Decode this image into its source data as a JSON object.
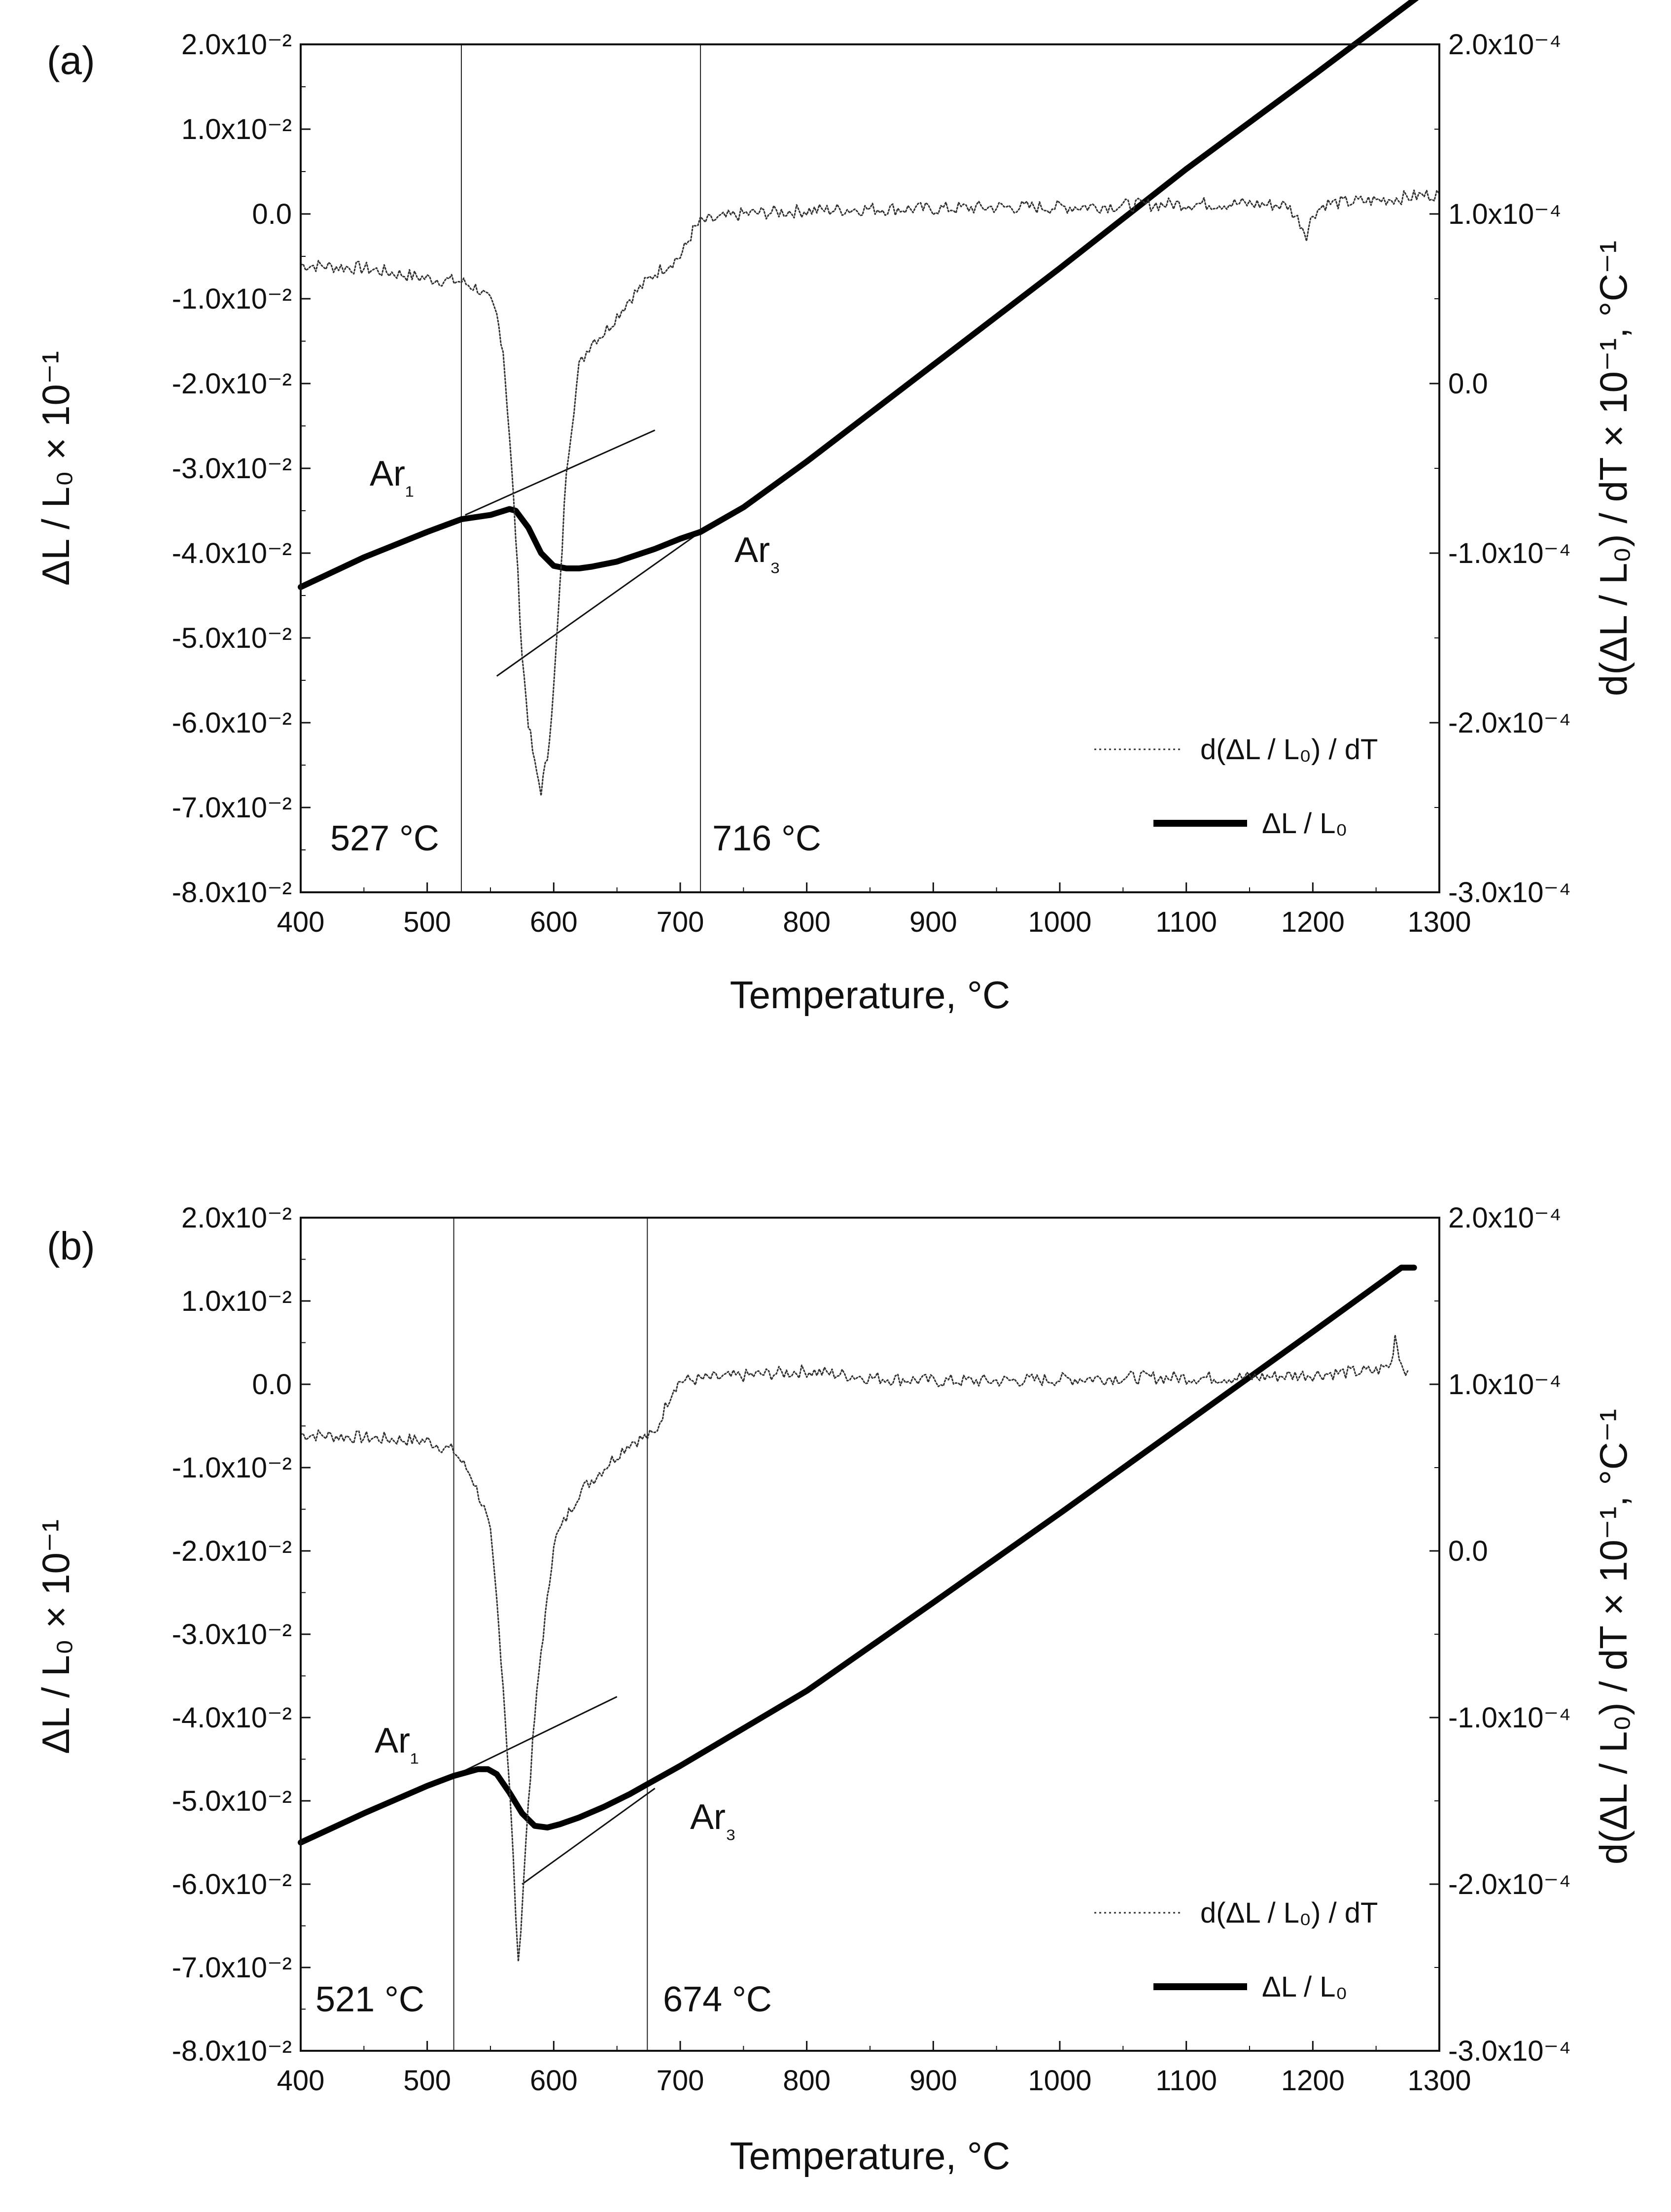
{
  "chart_data": [
    {
      "type": "line",
      "panel_label": "(a)",
      "xlabel": "Temperature, °C",
      "ylabel": "ΔL / L₀ × 10⁻¹",
      "y2label": "d(ΔL / L₀) / dT × 10⁻¹, °C⁻¹",
      "xlim": [
        400,
        1300
      ],
      "ylim": [
        -0.08,
        0.02
      ],
      "y2lim": [
        -0.0003,
        0.0002
      ],
      "x_ticks": [
        "400",
        "500",
        "600",
        "700",
        "800",
        "900",
        "1000",
        "1100",
        "1200",
        "1300"
      ],
      "y_ticks": [
        "2.0x10⁻²",
        "1.0x10⁻²",
        "0.0",
        "-1.0x10⁻²",
        "-2.0x10⁻²",
        "-3.0x10⁻²",
        "-4.0x10⁻²",
        "-5.0x10⁻²",
        "-6.0x10⁻²",
        "-7.0x10⁻²",
        "-8.0x10⁻²"
      ],
      "y2_ticks": [
        "2.0x10⁻⁴",
        "1.0x10⁻⁴",
        "0.0",
        "-1.0x10⁻⁴",
        "-2.0x10⁻⁴",
        "-3.0x10⁻⁴"
      ],
      "legend": [
        "d(ΔL / L₀) / dT",
        "ΔL / L₀"
      ],
      "series": [
        {
          "name": "ΔL / L₀",
          "style": "thick",
          "x": [
            400,
            450,
            500,
            527,
            550,
            565,
            570,
            580,
            590,
            600,
            610,
            620,
            630,
            650,
            680,
            700,
            716,
            750,
            800,
            900,
            1000,
            1100,
            1200,
            1285
          ],
          "y": [
            -0.044,
            -0.0405,
            -0.0375,
            -0.036,
            -0.0355,
            -0.0348,
            -0.035,
            -0.037,
            -0.04,
            -0.0415,
            -0.0418,
            -0.0418,
            -0.0416,
            -0.041,
            -0.0395,
            -0.0383,
            -0.0375,
            -0.0346,
            -0.0292,
            -0.0178,
            -0.0064,
            0.0053,
            0.0163,
            0.0258
          ]
        },
        {
          "name": "d(ΔL / L₀) / dT",
          "style": "dotted",
          "x": [
            400,
            450,
            500,
            527,
            540,
            550,
            555,
            560,
            565,
            570,
            575,
            580,
            585,
            590,
            595,
            600,
            605,
            610,
            620,
            630,
            640,
            660,
            680,
            700,
            705,
            710,
            716,
            750,
            800,
            850,
            900,
            950,
            1000,
            1050,
            1100,
            1150,
            1180,
            1190,
            1195,
            1200,
            1210,
            1250,
            1300
          ],
          "y": [
            7e-05,
            6.8e-05,
            6.2e-05,
            6e-05,
            5.6e-05,
            4.8e-05,
            4e-05,
            2e-05,
            -3e-05,
            -9e-05,
            -0.00016,
            -0.0002,
            -0.000225,
            -0.00024,
            -0.00022,
            -0.00018,
            -0.00012,
            -5e-05,
            1e-05,
            2.5e-05,
            3e-05,
            5e-05,
            6.5e-05,
            7.5e-05,
            8.2e-05,
            9e-05,
            9.5e-05,
            0.0001,
            0.000102,
            0.000103,
            0.000103,
            0.000104,
            0.000104,
            0.000105,
            0.000106,
            0.000106,
            0.000105,
            9.5e-05,
            8.8e-05,
            0.0001,
            0.000106,
            0.000108,
            0.000112
          ]
        }
      ],
      "guides": [
        {
          "x1": 530,
          "y1": -0.0355,
          "x2": 680,
          "y2": -0.0255
        },
        {
          "x1": 555,
          "y1": -0.0545,
          "x2": 716,
          "y2": -0.0375
        }
      ],
      "vlines": [
        527,
        716
      ],
      "annotations": [
        "Ar₁",
        "Ar₃",
        "527 °C",
        "716 °C"
      ]
    },
    {
      "type": "line",
      "panel_label": "(b)",
      "xlabel": "Temperature, °C",
      "ylabel": "ΔL / L₀ × 10⁻¹",
      "y2label": "d(ΔL / L₀) / dT × 10⁻¹, °C⁻¹",
      "xlim": [
        400,
        1300
      ],
      "ylim": [
        -0.08,
        0.02
      ],
      "y2lim": [
        -0.0003,
        0.0002
      ],
      "x_ticks": [
        "400",
        "500",
        "600",
        "700",
        "800",
        "900",
        "1000",
        "1100",
        "1200",
        "1300"
      ],
      "y_ticks": [
        "2.0x10⁻²",
        "1.0x10⁻²",
        "0.0",
        "-1.0x10⁻²",
        "-2.0x10⁻²",
        "-3.0x10⁻²",
        "-4.0x10⁻²",
        "-5.0x10⁻²",
        "-6.0x10⁻²",
        "-7.0x10⁻²",
        "-8.0x10⁻²"
      ],
      "y2_ticks": [
        "2.0x10⁻⁴",
        "1.0x10⁻⁴",
        "0.0",
        "-1.0x10⁻⁴",
        "-2.0x10⁻⁴",
        "-3.0x10⁻⁴"
      ],
      "legend": [
        "d(ΔL / L₀) / dT",
        "ΔL / L₀"
      ],
      "series": [
        {
          "name": "ΔL / L₀",
          "style": "thick",
          "x": [
            400,
            450,
            500,
            521,
            540,
            548,
            555,
            565,
            575,
            585,
            595,
            605,
            620,
            640,
            660,
            674,
            700,
            800,
            900,
            1000,
            1100,
            1200,
            1270,
            1280
          ],
          "y": [
            -0.055,
            -0.0515,
            -0.0482,
            -0.047,
            -0.0462,
            -0.0462,
            -0.0468,
            -0.049,
            -0.0515,
            -0.053,
            -0.0532,
            -0.0528,
            -0.052,
            -0.0507,
            -0.0492,
            -0.048,
            -0.0458,
            -0.0368,
            -0.0262,
            -0.0155,
            -0.0046,
            0.0063,
            0.014,
            0.014
          ]
        },
        {
          "name": "d(ΔL / L₀) / dT",
          "style": "dotted",
          "x": [
            400,
            450,
            500,
            521,
            535,
            545,
            550,
            555,
            560,
            565,
            568,
            572,
            576,
            580,
            585,
            590,
            595,
            600,
            610,
            620,
            640,
            660,
            680,
            690,
            695,
            700,
            750,
            800,
            850,
            900,
            950,
            1000,
            1050,
            1100,
            1150,
            1200,
            1250,
            1262,
            1265,
            1270,
            1275
          ],
          "y": [
            7e-05,
            6.8e-05,
            6.6e-05,
            6e-05,
            4.5e-05,
            2.5e-05,
            1e-05,
            -3e-05,
            -8e-05,
            -0.00014,
            -0.000185,
            -0.00025,
            -0.0002,
            -0.00015,
            -0.0001,
            -6e-05,
            -3e-05,
            5e-06,
            2e-05,
            3.5e-05,
            5e-05,
            6.5e-05,
            7e-05,
            9e-05,
            9.8e-05,
            0.000102,
            0.000105,
            0.000108,
            0.000104,
            0.000102,
            0.000102,
            0.000103,
            0.000104,
            0.000104,
            0.000104,
            0.000106,
            0.000108,
            0.000112,
            0.00013,
            0.000112,
            0.000108
          ]
        }
      ],
      "guides": [
        {
          "x1": 521,
          "y1": -0.047,
          "x2": 650,
          "y2": -0.0375
        },
        {
          "x1": 575,
          "y1": -0.06,
          "x2": 680,
          "y2": -0.0485
        }
      ],
      "vlines": [
        521,
        674
      ],
      "annotations": [
        "Ar₁",
        "Ar₃",
        "521 °C",
        "674 °C"
      ]
    }
  ]
}
